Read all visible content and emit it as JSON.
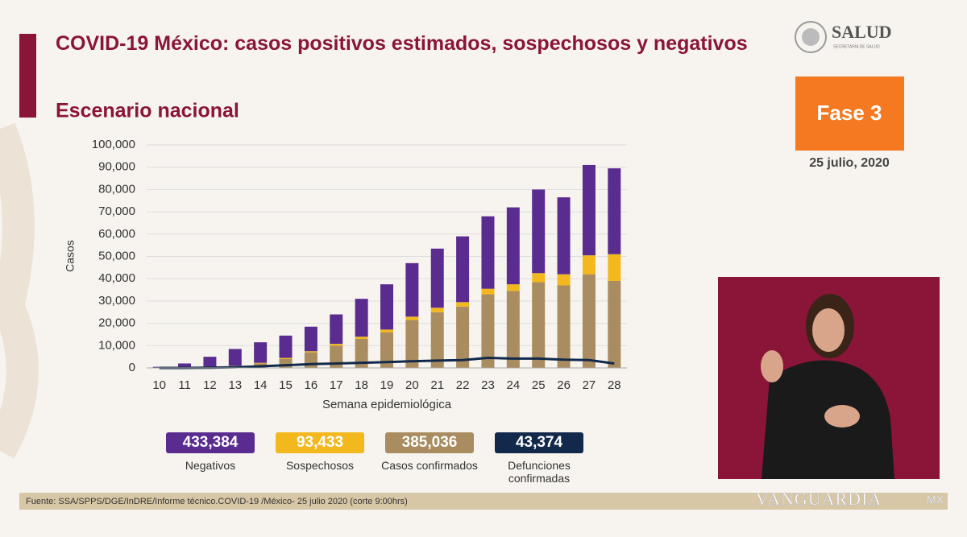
{
  "header": {
    "title": "COVID-19 México: casos positivos estimados, sospechosos y negativos",
    "subtitle": "Escenario nacional",
    "logo": "SALUD",
    "logo_sub": "SECRETARÍA DE SALUD",
    "phase": "Fase 3",
    "date": "25 julio, 2020"
  },
  "chart_data": {
    "type": "bar",
    "stacked": true,
    "categories": [
      "10",
      "11",
      "12",
      "13",
      "14",
      "15",
      "16",
      "17",
      "18",
      "19",
      "20",
      "21",
      "22",
      "23",
      "24",
      "25",
      "26",
      "27",
      "28"
    ],
    "xlabel": "Semana epidemiológica",
    "ylabel": "Casos",
    "ylim": [
      0,
      100000
    ],
    "yticks": [
      0,
      {
        "value": 10000,
        "label": "10,000"
      },
      {
        "value": 20000,
        "label": "20,000"
      },
      {
        "value": 30000,
        "label": "30,000"
      },
      {
        "value": 40000,
        "label": "40,000"
      },
      {
        "value": 50000,
        "label": "50,000"
      },
      {
        "value": 60000,
        "label": "60,000"
      },
      {
        "value": 70000,
        "label": "70,000"
      },
      {
        "value": 80000,
        "label": "80,000"
      },
      {
        "value": 90000,
        "label": "90,000"
      },
      {
        "value": 100000,
        "label": "100,000"
      }
    ],
    "grid": true,
    "series": [
      {
        "name": "Negativos",
        "total": "433,384",
        "color": "#5b2c8f",
        "values": [
          500,
          1900,
          4600,
          7500,
          9200,
          10000,
          11000,
          13200,
          17000,
          20300,
          24000,
          26500,
          29500,
          32500,
          34500,
          37500,
          34500,
          40500,
          38500
        ]
      },
      {
        "name": "Sospechosos",
        "total": "93,433",
        "color": "#f2b81e",
        "values": [
          0,
          0,
          100,
          200,
          300,
          500,
          500,
          800,
          1000,
          1200,
          1500,
          2000,
          2000,
          2500,
          3000,
          4000,
          5000,
          8500,
          12000
        ]
      },
      {
        "name": "Casos confirmados",
        "total": "385,036",
        "color": "#a98c5f",
        "values": [
          0,
          100,
          300,
          800,
          2000,
          4000,
          7000,
          10000,
          13000,
          16000,
          21500,
          25000,
          27500,
          33000,
          34500,
          38500,
          37000,
          42000,
          39000
        ]
      },
      {
        "name": "Defunciones confirmadas",
        "total": "43,374",
        "color": "#13294b",
        "type": "line",
        "values": [
          0,
          10,
          100,
          300,
          700,
          1200,
          1700,
          2000,
          2300,
          2600,
          3000,
          3300,
          3500,
          4500,
          4200,
          4200,
          3700,
          3500,
          2000
        ]
      }
    ]
  },
  "footer": {
    "source": "Fuente: SSA/SPPS/DGE/InDRE/Informe técnico.COVID-19 /México- 25 julio 2020 (corte 9:00hrs)",
    "watermark": "VANGUARDIA",
    "watermark_sub": "MX"
  }
}
